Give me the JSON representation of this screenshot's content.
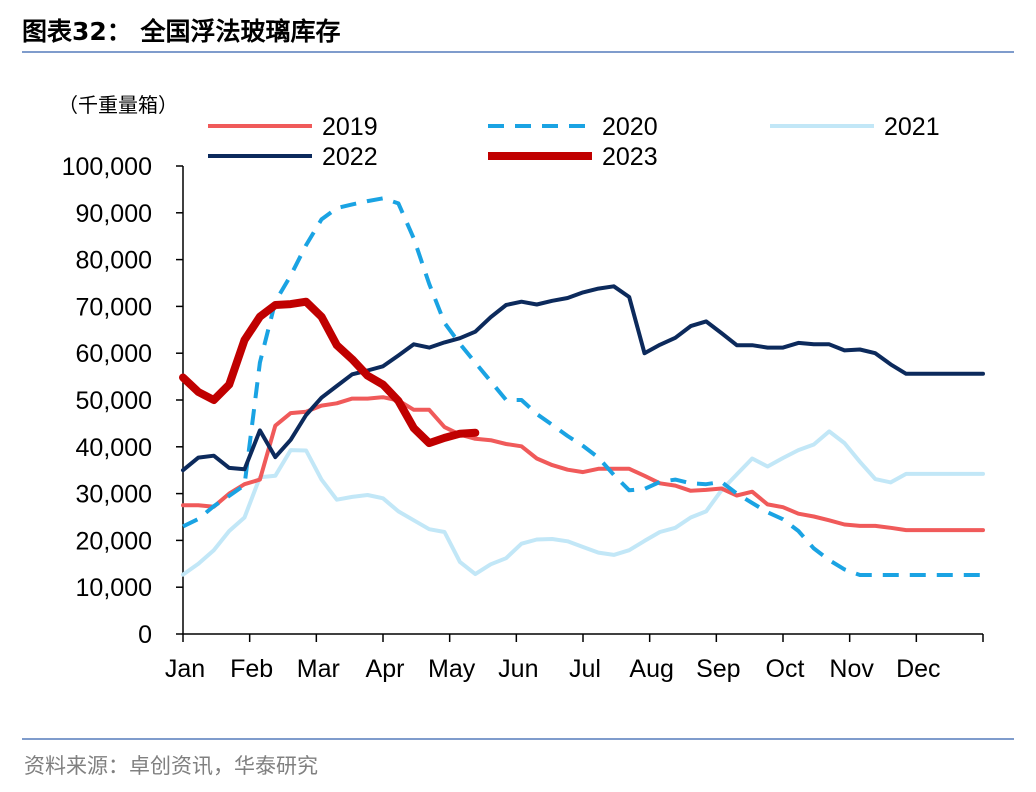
{
  "figure": {
    "title": "图表32： 全国浮法玻璃库存",
    "source": "资料来源：卓创资讯，华泰研究"
  },
  "chart_data": {
    "type": "line",
    "title": "",
    "ylabel": "（千重量箱）",
    "xlabel": "",
    "ylim": [
      0,
      100000
    ],
    "yticks": [
      0,
      10000,
      20000,
      30000,
      40000,
      50000,
      60000,
      70000,
      80000,
      90000,
      100000
    ],
    "ytick_labels": [
      "0",
      "10,000",
      "20,000",
      "30,000",
      "40,000",
      "50,000",
      "60,000",
      "70,000",
      "80,000",
      "90,000",
      "100,000"
    ],
    "months": [
      "Jan",
      "Feb",
      "Mar",
      "Apr",
      "May",
      "Jun",
      "Jul",
      "Aug",
      "Sep",
      "Oct",
      "Nov",
      "Dec"
    ],
    "x_unit": "week of year",
    "xlim": [
      1,
      53
    ],
    "grid": false,
    "legend": "top",
    "series": [
      {
        "name": "2019",
        "color": "#f05a5a",
        "style": "solid",
        "weight": "normal",
        "x": [
          1,
          2,
          3,
          4,
          5,
          6,
          7,
          8,
          9,
          10,
          11,
          12,
          13,
          14,
          15,
          16,
          17,
          18,
          19,
          20,
          21,
          22,
          23,
          24,
          25,
          26,
          27,
          28,
          29,
          30,
          31,
          32,
          33,
          34,
          35,
          36,
          37,
          38,
          39,
          40,
          41,
          42,
          43,
          44,
          45,
          46,
          47,
          48,
          49,
          50,
          51,
          52,
          53
        ],
        "values": [
          27500,
          27500,
          27200,
          30000,
          32000,
          33000,
          44500,
          47200,
          47500,
          48800,
          49300,
          50300,
          50300,
          50600,
          49900,
          47900,
          47900,
          44200,
          42600,
          41700,
          41400,
          40600,
          40100,
          37500,
          36100,
          35100,
          34600,
          35300,
          35300,
          35300,
          33800,
          32200,
          31700,
          30600,
          30800,
          31100,
          29600,
          30400,
          27700,
          27100,
          25700,
          25100,
          24300,
          23400,
          23100,
          23100,
          22700,
          22200,
          22200,
          22200,
          22200,
          22200,
          22200
        ]
      },
      {
        "name": "2020",
        "color": "#1aa3e3",
        "style": "dashed",
        "weight": "normal",
        "x": [
          1,
          2,
          3,
          4,
          5,
          6,
          7,
          8,
          9,
          10,
          11,
          12,
          13,
          14,
          15,
          16,
          17,
          18,
          19,
          20,
          21,
          22,
          23,
          24,
          25,
          26,
          27,
          28,
          29,
          30,
          31,
          32,
          33,
          34,
          35,
          36,
          37,
          38,
          39,
          40,
          41,
          42,
          43,
          44,
          45,
          46,
          47,
          48,
          49,
          50,
          51,
          52,
          53
        ],
        "values": [
          23000,
          24600,
          27300,
          29500,
          31800,
          58000,
          71000,
          76600,
          83100,
          88600,
          91000,
          91800,
          92500,
          93100,
          92000,
          84500,
          74800,
          66500,
          62000,
          58000,
          54000,
          50000,
          50000,
          47000,
          44700,
          42300,
          40200,
          37700,
          34000,
          30700,
          31000,
          32500,
          33000,
          32200,
          32000,
          32500,
          30000,
          28000,
          26000,
          24500,
          22000,
          18300,
          15800,
          13800,
          12600,
          12600,
          12600,
          12600,
          12600,
          12600,
          12600,
          12600,
          12600
        ]
      },
      {
        "name": "2021",
        "color": "#c2e7f7",
        "style": "solid",
        "weight": "normal",
        "x": [
          1,
          2,
          3,
          4,
          5,
          6,
          7,
          8,
          9,
          10,
          11,
          12,
          13,
          14,
          15,
          16,
          17,
          18,
          19,
          20,
          21,
          22,
          23,
          24,
          25,
          26,
          27,
          28,
          29,
          30,
          31,
          32,
          33,
          34,
          35,
          36,
          37,
          38,
          39,
          40,
          41,
          42,
          43,
          44,
          45,
          46,
          47,
          48,
          49,
          50,
          51,
          52,
          53
        ],
        "values": [
          12700,
          15000,
          17900,
          22000,
          24900,
          33500,
          33800,
          39300,
          39200,
          33000,
          28700,
          29300,
          29700,
          29000,
          26200,
          24300,
          22400,
          21800,
          15400,
          12800,
          14900,
          16200,
          19300,
          20200,
          20300,
          19800,
          18600,
          17400,
          16900,
          17900,
          19900,
          21800,
          22700,
          24900,
          26200,
          30700,
          34100,
          37500,
          35800,
          37600,
          39300,
          40500,
          43300,
          40800,
          36800,
          33100,
          32400,
          34200,
          34200,
          34200,
          34200,
          34200,
          34200
        ]
      },
      {
        "name": "2022",
        "color": "#0c2a5c",
        "style": "solid",
        "weight": "normal",
        "x": [
          1,
          2,
          3,
          4,
          5,
          6,
          7,
          8,
          9,
          10,
          11,
          12,
          13,
          14,
          15,
          16,
          17,
          18,
          19,
          20,
          21,
          22,
          23,
          24,
          25,
          26,
          27,
          28,
          29,
          30,
          31,
          32,
          33,
          34,
          35,
          36,
          37,
          38,
          39,
          40,
          41,
          42,
          43,
          44,
          45,
          46,
          47,
          48,
          49,
          50,
          51,
          52,
          53
        ],
        "values": [
          35000,
          37700,
          38100,
          35500,
          35200,
          43500,
          37800,
          41500,
          46800,
          50500,
          53000,
          55500,
          56300,
          57200,
          59500,
          61900,
          61200,
          62300,
          63200,
          64600,
          67700,
          70300,
          71000,
          70400,
          71200,
          71800,
          73000,
          73800,
          74300,
          72000,
          60000,
          61800,
          63300,
          65800,
          66800,
          64300,
          61700,
          61700,
          61200,
          61200,
          62200,
          61900,
          61900,
          60600,
          60800,
          60000,
          57600,
          55600,
          55600,
          55600,
          55600,
          55600,
          55600
        ]
      },
      {
        "name": "2023",
        "color": "#c00000",
        "style": "solid",
        "weight": "bold",
        "x": [
          1,
          2,
          3,
          4,
          5,
          6,
          7,
          8,
          9,
          10,
          11,
          12,
          13,
          14,
          15,
          16,
          17,
          18,
          19,
          20
        ],
        "values": [
          54800,
          51700,
          50000,
          53300,
          62800,
          67800,
          70300,
          70500,
          71000,
          67800,
          61700,
          58700,
          55200,
          53300,
          49800,
          44000,
          40800,
          41900,
          42800,
          43000
        ]
      }
    ]
  }
}
